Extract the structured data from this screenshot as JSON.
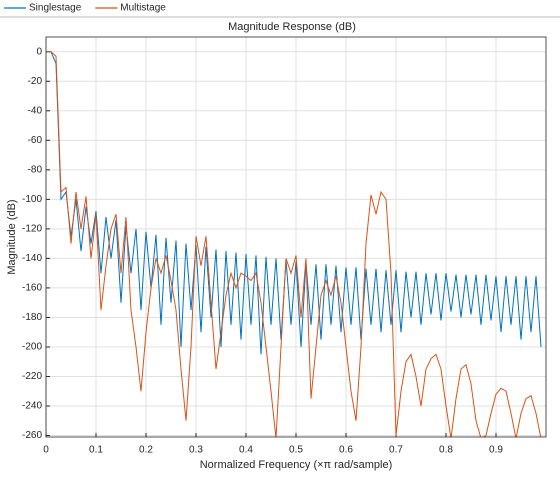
{
  "chart_data": {
    "type": "line",
    "title": "Magnitude Response (dB)",
    "xlabel": "Normalized Frequency (×π rad/sample)",
    "ylabel": "Magnitude (dB)",
    "x": [
      0,
      0.01,
      0.02,
      0.03,
      0.04,
      0.05,
      0.06,
      0.07,
      0.08,
      0.09,
      0.1,
      0.11,
      0.12,
      0.13,
      0.14,
      0.15,
      0.16,
      0.17,
      0.18,
      0.19,
      0.2,
      0.21,
      0.22,
      0.23,
      0.24,
      0.25,
      0.26,
      0.27,
      0.28,
      0.29,
      0.3,
      0.31,
      0.32,
      0.33,
      0.34,
      0.35,
      0.36,
      0.37,
      0.38,
      0.39,
      0.4,
      0.41,
      0.42,
      0.43,
      0.44,
      0.45,
      0.46,
      0.47,
      0.48,
      0.49,
      0.5,
      0.51,
      0.52,
      0.53,
      0.54,
      0.55,
      0.56,
      0.57,
      0.58,
      0.59,
      0.6,
      0.61,
      0.62,
      0.63,
      0.64,
      0.65,
      0.66,
      0.67,
      0.68,
      0.69,
      0.7,
      0.71,
      0.72,
      0.73,
      0.74,
      0.75,
      0.76,
      0.77,
      0.78,
      0.79,
      0.8,
      0.81,
      0.82,
      0.83,
      0.84,
      0.85,
      0.86,
      0.87,
      0.88,
      0.89,
      0.9,
      0.91,
      0.92,
      0.93,
      0.94,
      0.95,
      0.96,
      0.97,
      0.98,
      0.99
    ],
    "series": [
      {
        "name": "Singlestage",
        "color": "#0072BD",
        "values": [
          0,
          0,
          -8,
          -100,
          -95,
          -125,
          -100,
          -135,
          -105,
          -130,
          -108,
          -150,
          -112,
          -140,
          -114,
          -170,
          -118,
          -150,
          -120,
          -175,
          -122,
          -160,
          -124,
          -185,
          -126,
          -170,
          -128,
          -200,
          -130,
          -175,
          -131,
          -190,
          -132,
          -180,
          -134,
          -200,
          -135,
          -185,
          -136,
          -195,
          -137,
          -185,
          -138,
          -205,
          -139,
          -185,
          -140,
          -195,
          -141,
          -185,
          -142,
          -200,
          -143,
          -185,
          -144,
          -195,
          -144,
          -185,
          -145,
          -190,
          -146,
          -185,
          -146,
          -195,
          -147,
          -185,
          -147,
          -190,
          -148,
          -185,
          -148,
          -190,
          -149,
          -180,
          -149,
          -185,
          -150,
          -178,
          -150,
          -182,
          -150,
          -176,
          -151,
          -180,
          -151,
          -178,
          -151,
          -185,
          -151,
          -182,
          -152,
          -190,
          -152,
          -185,
          -152,
          -195,
          -152,
          -190,
          -152,
          -200
        ]
      },
      {
        "name": "Multistage",
        "color": "#D95319",
        "values": [
          0,
          0,
          -3,
          -95,
          -92,
          -130,
          -95,
          -120,
          -98,
          -140,
          -110,
          -175,
          -145,
          -120,
          -110,
          -150,
          -112,
          -175,
          -200,
          -230,
          -190,
          -160,
          -140,
          -150,
          -138,
          -155,
          -175,
          -215,
          -250,
          -200,
          -125,
          -145,
          -125,
          -170,
          -215,
          -190,
          -165,
          -150,
          -160,
          -150,
          -152,
          -155,
          -150,
          -170,
          -200,
          -230,
          -262,
          -200,
          -140,
          -150,
          -138,
          -180,
          -140,
          -235,
          -200,
          -165,
          -155,
          -165,
          -152,
          -170,
          -200,
          -230,
          -250,
          -200,
          -130,
          -97,
          -110,
          -95,
          -100,
          -150,
          -260,
          -230,
          -210,
          -205,
          -220,
          -240,
          -215,
          -208,
          -205,
          -215,
          -240,
          -262,
          -235,
          -215,
          -212,
          -225,
          -250,
          -262,
          -260,
          -245,
          -232,
          -228,
          -230,
          -245,
          -262,
          -245,
          -235,
          -233,
          -245,
          -262
        ]
      }
    ],
    "xlim": [
      0,
      1
    ],
    "xticks": [
      0,
      0.1,
      0.2,
      0.3,
      0.4,
      0.5,
      0.6,
      0.7,
      0.8,
      0.9
    ],
    "ylim": [
      -261,
      10
    ],
    "yticks": [
      0,
      -20,
      -40,
      -60,
      -80,
      -100,
      -120,
      -140,
      -160,
      -180,
      -200,
      -220,
      -240,
      -260
    ],
    "grid": true,
    "legend": "top"
  }
}
